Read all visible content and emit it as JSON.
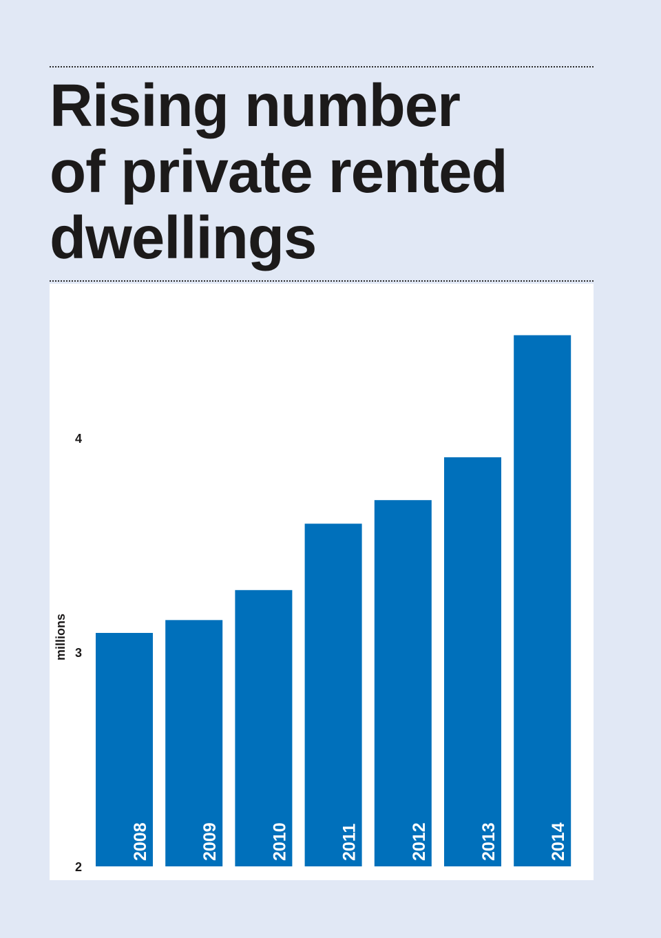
{
  "title_lines": [
    "Rising number",
    "of private rented",
    "dwellings"
  ],
  "colors": {
    "background": "#e1e8f5",
    "panel": "#ffffff",
    "bar": "#0070bb",
    "text": "#1c1a1a",
    "bar_label": "#ffffff"
  },
  "chart_data": {
    "type": "bar",
    "title": "Rising number of private rented dwellings",
    "ylabel": "millions",
    "xlabel": "",
    "ylim": [
      2,
      4.5
    ],
    "yticks": [
      2,
      3,
      4
    ],
    "ytick_labels": [
      "2",
      "3",
      "4"
    ],
    "categories": [
      "2008",
      "2009",
      "2010",
      "2011",
      "2012",
      "2013",
      "2014"
    ],
    "values": [
      3.09,
      3.15,
      3.29,
      3.6,
      3.71,
      3.91,
      4.48
    ],
    "grid": false,
    "legend": "none"
  }
}
